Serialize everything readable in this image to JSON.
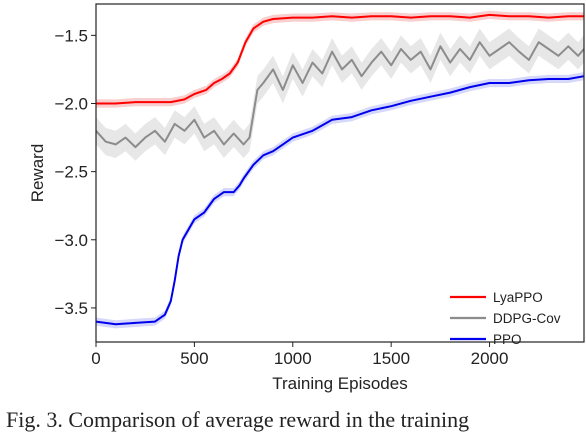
{
  "chart_data": {
    "type": "line",
    "title": "",
    "xlabel": "Training Episodes",
    "ylabel": "Reward",
    "xlim": [
      0,
      2480
    ],
    "ylim": [
      -3.75,
      -1.27
    ],
    "xticks": [
      0,
      500,
      1000,
      1500,
      2000
    ],
    "xtick_labels": [
      "0",
      "500",
      "1000",
      "1500",
      "2000"
    ],
    "yticks": [
      -1.5,
      -2.0,
      -2.5,
      -3.0,
      -3.5
    ],
    "ytick_labels": [
      "−1.5",
      "−2.0",
      "−2.5",
      "−3.0",
      "−3.5"
    ],
    "grid": false,
    "legend_position": "lower-right",
    "series": [
      {
        "name": "LyaPPO",
        "color": "#ff0000",
        "shade_color": "#f4a6a6",
        "band": 0.03,
        "x": [
          0,
          100,
          200,
          300,
          380,
          450,
          500,
          560,
          600,
          640,
          680,
          720,
          760,
          800,
          850,
          900,
          1000,
          1100,
          1200,
          1300,
          1400,
          1500,
          1600,
          1700,
          1800,
          1900,
          2000,
          2100,
          2200,
          2300,
          2400,
          2480
        ],
        "y": [
          -2.0,
          -2.0,
          -1.99,
          -1.99,
          -1.99,
          -1.97,
          -1.93,
          -1.9,
          -1.85,
          -1.82,
          -1.78,
          -1.7,
          -1.55,
          -1.45,
          -1.4,
          -1.38,
          -1.37,
          -1.37,
          -1.36,
          -1.37,
          -1.36,
          -1.36,
          -1.37,
          -1.36,
          -1.36,
          -1.37,
          -1.35,
          -1.36,
          -1.36,
          -1.37,
          -1.36,
          -1.36
        ]
      },
      {
        "name": "DDPG-Cov",
        "color": "#8c8c8c",
        "shade_color": "#d3d3d3",
        "band": 0.1,
        "x": [
          0,
          50,
          100,
          150,
          200,
          250,
          300,
          350,
          400,
          450,
          500,
          550,
          600,
          650,
          700,
          750,
          780,
          820,
          850,
          900,
          950,
          1000,
          1050,
          1100,
          1150,
          1200,
          1250,
          1300,
          1350,
          1400,
          1450,
          1500,
          1550,
          1600,
          1650,
          1700,
          1750,
          1800,
          1850,
          1900,
          1950,
          2000,
          2050,
          2100,
          2150,
          2200,
          2250,
          2300,
          2350,
          2400,
          2450,
          2480
        ],
        "y": [
          -2.2,
          -2.28,
          -2.3,
          -2.25,
          -2.32,
          -2.25,
          -2.2,
          -2.28,
          -2.15,
          -2.2,
          -2.12,
          -2.25,
          -2.2,
          -2.3,
          -2.22,
          -2.3,
          -2.25,
          -1.9,
          -1.85,
          -1.75,
          -1.9,
          -1.72,
          -1.85,
          -1.7,
          -1.78,
          -1.62,
          -1.75,
          -1.68,
          -1.8,
          -1.7,
          -1.62,
          -1.72,
          -1.6,
          -1.68,
          -1.62,
          -1.75,
          -1.58,
          -1.7,
          -1.6,
          -1.68,
          -1.55,
          -1.65,
          -1.6,
          -1.55,
          -1.62,
          -1.68,
          -1.55,
          -1.6,
          -1.65,
          -1.58,
          -1.65,
          -1.6
        ]
      },
      {
        "name": "PPO",
        "color": "#0000ee",
        "shade_color": "#b3b8f5",
        "band": 0.03,
        "x": [
          0,
          100,
          200,
          300,
          350,
          380,
          400,
          420,
          440,
          460,
          500,
          550,
          600,
          650,
          700,
          730,
          750,
          800,
          850,
          900,
          950,
          1000,
          1100,
          1200,
          1300,
          1400,
          1500,
          1600,
          1700,
          1800,
          1900,
          2000,
          2100,
          2200,
          2300,
          2400,
          2480
        ],
        "y": [
          -3.6,
          -3.62,
          -3.61,
          -3.6,
          -3.55,
          -3.45,
          -3.3,
          -3.12,
          -3.0,
          -2.95,
          -2.85,
          -2.8,
          -2.7,
          -2.65,
          -2.65,
          -2.6,
          -2.55,
          -2.45,
          -2.38,
          -2.35,
          -2.3,
          -2.25,
          -2.2,
          -2.12,
          -2.1,
          -2.05,
          -2.02,
          -1.98,
          -1.95,
          -1.92,
          -1.88,
          -1.85,
          -1.85,
          -1.83,
          -1.82,
          -1.82,
          -1.8
        ]
      }
    ],
    "legend": [
      "LyaPPO",
      "DDPG-Cov",
      "PPO"
    ]
  },
  "caption": {
    "text": "Fig. 3.  Comparison of average reward in the training"
  }
}
